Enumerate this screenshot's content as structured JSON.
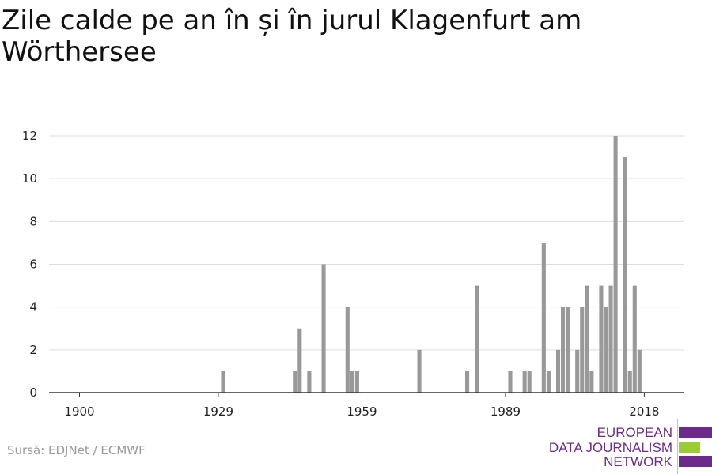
{
  "title": "Zile calde pe an în și în jurul Klagenfurt am Wörthersee",
  "source": "Sursă: EDJNet / ECMWF",
  "logo": {
    "lines": [
      "EUROPEAN",
      "DATA JOURNALISM",
      "NETWORK"
    ],
    "colors": {
      "purple": "#6b2a8c",
      "green": "#9acd32"
    }
  },
  "colors": {
    "bar": "#999999",
    "grid": "#dddddd",
    "axis": "#333333"
  },
  "chart_data": {
    "type": "bar",
    "title": "Zile calde pe an în și în jurul Klagenfurt am Wörthersee",
    "xlabel": "",
    "ylabel": "",
    "xlim": [
      1900,
      2021
    ],
    "ylim": [
      0,
      12
    ],
    "x_ticks": [
      1900,
      1929,
      1959,
      1989,
      2018
    ],
    "y_ticks": [
      0,
      2,
      4,
      6,
      8,
      10,
      12
    ],
    "grid": "horizontal",
    "values": [
      {
        "year": 1930,
        "value": 1
      },
      {
        "year": 1945,
        "value": 1
      },
      {
        "year": 1946,
        "value": 3
      },
      {
        "year": 1948,
        "value": 1
      },
      {
        "year": 1951,
        "value": 6
      },
      {
        "year": 1956,
        "value": 4
      },
      {
        "year": 1957,
        "value": 1
      },
      {
        "year": 1958,
        "value": 1
      },
      {
        "year": 1971,
        "value": 2
      },
      {
        "year": 1981,
        "value": 1
      },
      {
        "year": 1983,
        "value": 5
      },
      {
        "year": 1990,
        "value": 1
      },
      {
        "year": 1993,
        "value": 1
      },
      {
        "year": 1994,
        "value": 1
      },
      {
        "year": 1997,
        "value": 7
      },
      {
        "year": 1998,
        "value": 1
      },
      {
        "year": 2000,
        "value": 2
      },
      {
        "year": 2001,
        "value": 4
      },
      {
        "year": 2002,
        "value": 4
      },
      {
        "year": 2004,
        "value": 2
      },
      {
        "year": 2005,
        "value": 4
      },
      {
        "year": 2006,
        "value": 5
      },
      {
        "year": 2007,
        "value": 1
      },
      {
        "year": 2009,
        "value": 5
      },
      {
        "year": 2010,
        "value": 4
      },
      {
        "year": 2011,
        "value": 5
      },
      {
        "year": 2012,
        "value": 12
      },
      {
        "year": 2014,
        "value": 11
      },
      {
        "year": 2015,
        "value": 1
      },
      {
        "year": 2016,
        "value": 5
      },
      {
        "year": 2017,
        "value": 2
      }
    ]
  }
}
